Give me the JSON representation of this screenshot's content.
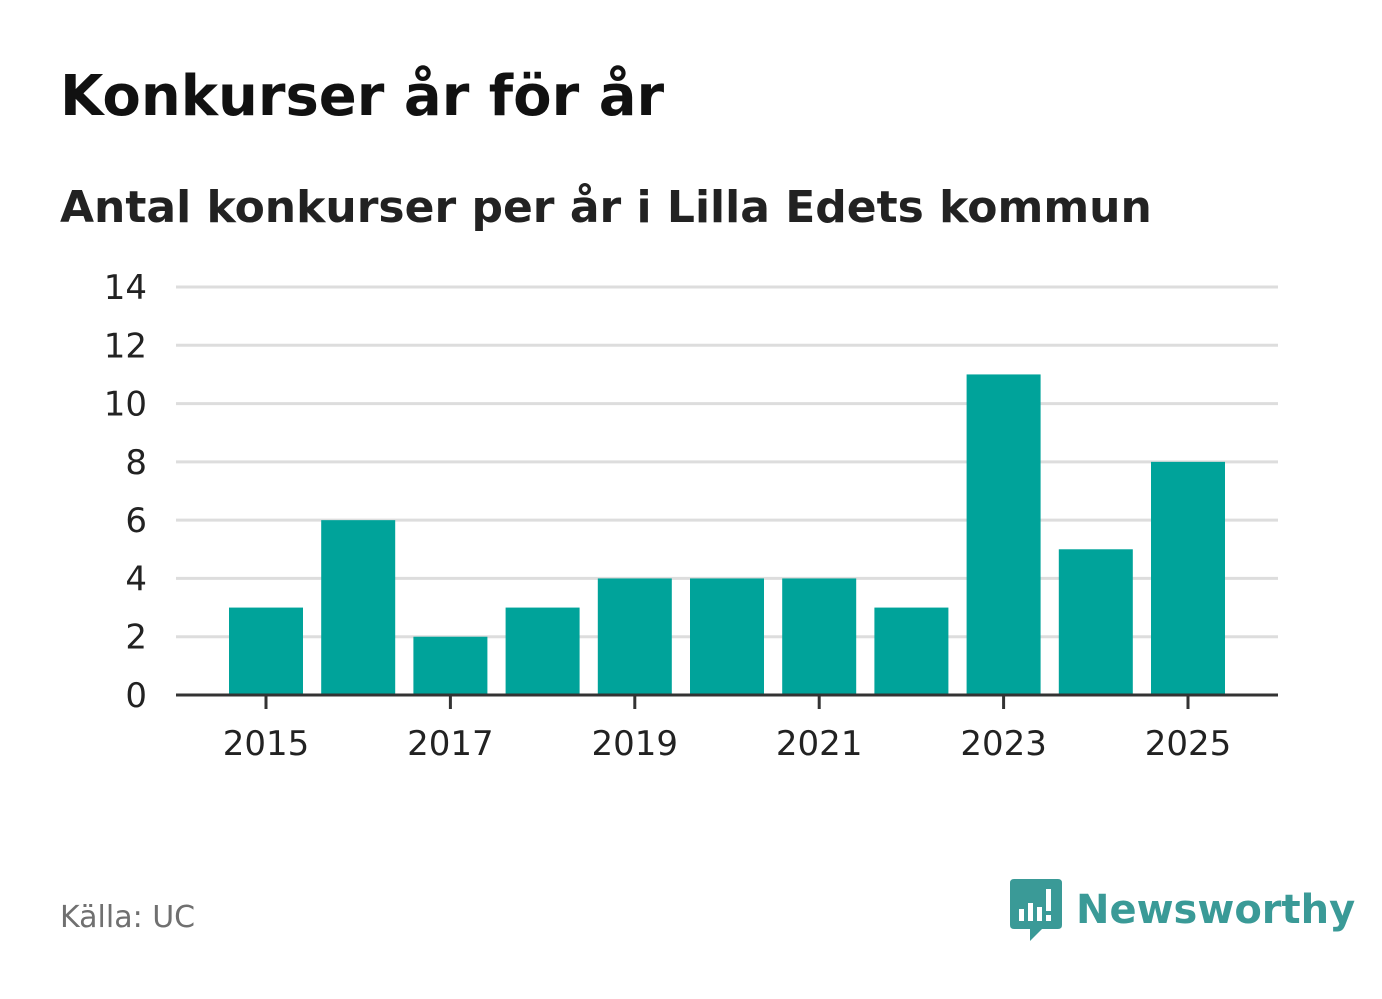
{
  "title": "Konkurser år för år",
  "subtitle": "Antal konkurser per år i Lilla Edets kommun",
  "source": "Källa: UC",
  "brand": {
    "name": "Newsworthy",
    "icon": "newsworthy-logo-icon",
    "color": "#3a9a97"
  },
  "colors": {
    "bar": "#00a39a",
    "grid": "#dddddd",
    "axis": "#333333",
    "tick_text": "#222222"
  },
  "chart_data": {
    "type": "bar",
    "categories": [
      "2015",
      "2016",
      "2017",
      "2018",
      "2019",
      "2020",
      "2021",
      "2022",
      "2023",
      "2024",
      "2025"
    ],
    "values": [
      3,
      6,
      2,
      3,
      4,
      4,
      4,
      3,
      11,
      5,
      8
    ],
    "x_tick_labels": [
      "2015",
      "2017",
      "2019",
      "2021",
      "2023",
      "2025"
    ],
    "y_ticks": [
      0,
      2,
      4,
      6,
      8,
      10,
      12,
      14
    ],
    "ylim": [
      0,
      14
    ],
    "xlabel": "",
    "ylabel": "",
    "grid": true,
    "legend": "none"
  }
}
